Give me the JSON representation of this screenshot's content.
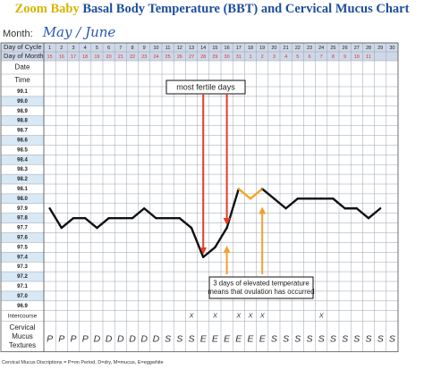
{
  "header": {
    "title_brand": "Zoom Baby",
    "title_rest": " Basal Body Temperature (BBT) and Cervical Mucus Chart",
    "month_label": "Month:",
    "month_value": "May / June"
  },
  "footnote": "Cervical Mucus Discriptions = P=on Period, D=dry, M=mucus, E=eggwhite",
  "colors": {
    "title_brand": "#d8b400",
    "title_rest": "#1d4e9a",
    "header_band": "#cfd8e8",
    "date_numbers": "#d23a2a",
    "temp_line": "#111111",
    "temp_line_highlight": "#f5a623",
    "arrow_red": "#e23d28",
    "arrow_orange": "#f0a030",
    "grid": "#9aa3b2",
    "temp_band_a": "#ffffff",
    "temp_band_b": "#d9e8f5"
  },
  "chart_data": {
    "type": "line",
    "title": "Zoom Baby Basal Body Temperature (BBT) and Cervical Mucus Chart",
    "row_labels": {
      "day_of_cycle": "Day of Cycle",
      "day_of_month": "Day of Month",
      "date": "Date",
      "time": "Time",
      "intercourse": "Intercourse",
      "mucus_1": "Cervical",
      "mucus_2": "Mucus",
      "mucus_3": "Textures"
    },
    "day_of_cycle": [
      "1",
      "2",
      "3",
      "4",
      "5",
      "6",
      "7",
      "8",
      "9",
      "10",
      "11",
      "12",
      "13",
      "14",
      "15",
      "16",
      "17",
      "18",
      "19",
      "20",
      "21",
      "22",
      "23",
      "24",
      "25",
      "26",
      "27",
      "28",
      "29",
      "30"
    ],
    "day_of_month": [
      "15",
      "16",
      "17",
      "18",
      "19",
      "20",
      "21",
      "22",
      "23",
      "24",
      "25",
      "26",
      "27",
      "28",
      "29",
      "30",
      "31",
      "1",
      "2",
      "3",
      "4",
      "5",
      "6",
      "7",
      "8",
      "9",
      "10",
      "11",
      "",
      ""
    ],
    "y_ticks": [
      "99.1",
      "99.0",
      "98.9",
      "98.8",
      "98.7",
      "98.6",
      "98.5",
      "98.4",
      "98.3",
      "98.2",
      "98.1",
      "98.0",
      "97.9",
      "97.8",
      "97.7",
      "97.6",
      "97.5",
      "97.4",
      "97.3",
      "97.2",
      "97.1",
      "97.0",
      "96.9"
    ],
    "ylim": [
      96.9,
      99.1
    ],
    "series": [
      {
        "values": [
          97.9,
          97.7,
          97.8,
          97.8,
          97.7,
          97.8,
          97.8,
          97.8,
          97.9,
          97.8,
          97.8,
          97.8,
          97.7,
          97.4,
          97.5,
          97.7,
          98.1,
          98.0,
          98.1,
          98.0,
          97.9,
          98.0,
          98.0,
          98.0,
          98.0,
          97.9,
          97.9,
          97.8,
          97.9,
          null
        ]
      }
    ],
    "highlight_days": [
      17,
      18,
      19
    ],
    "intercourse": [
      "",
      "",
      "",
      "",
      "",
      "",
      "",
      "",
      "",
      "",
      "",
      "",
      "X",
      "",
      "X",
      "",
      "X",
      "X",
      "X",
      "",
      "",
      "",
      "",
      "X",
      "",
      "",
      "",
      "",
      "",
      ""
    ],
    "mucus": [
      "P",
      "P",
      "P",
      "P",
      "D",
      "D",
      "D",
      "D",
      "D",
      "D",
      "S",
      "S",
      "S",
      "E",
      "E",
      "E",
      "E",
      "E",
      "E",
      "S",
      "S",
      "S",
      "S",
      "S",
      "S",
      "S",
      "S",
      "S",
      "S",
      "S"
    ],
    "annotations": {
      "fertile_label": "most fertile days",
      "elevated_line1": "3 days of elevated temperature",
      "elevated_line2": "means that ovulation has occurred",
      "red_arrow_days": [
        14,
        16
      ],
      "orange_arrow_days": [
        16,
        19
      ]
    }
  }
}
